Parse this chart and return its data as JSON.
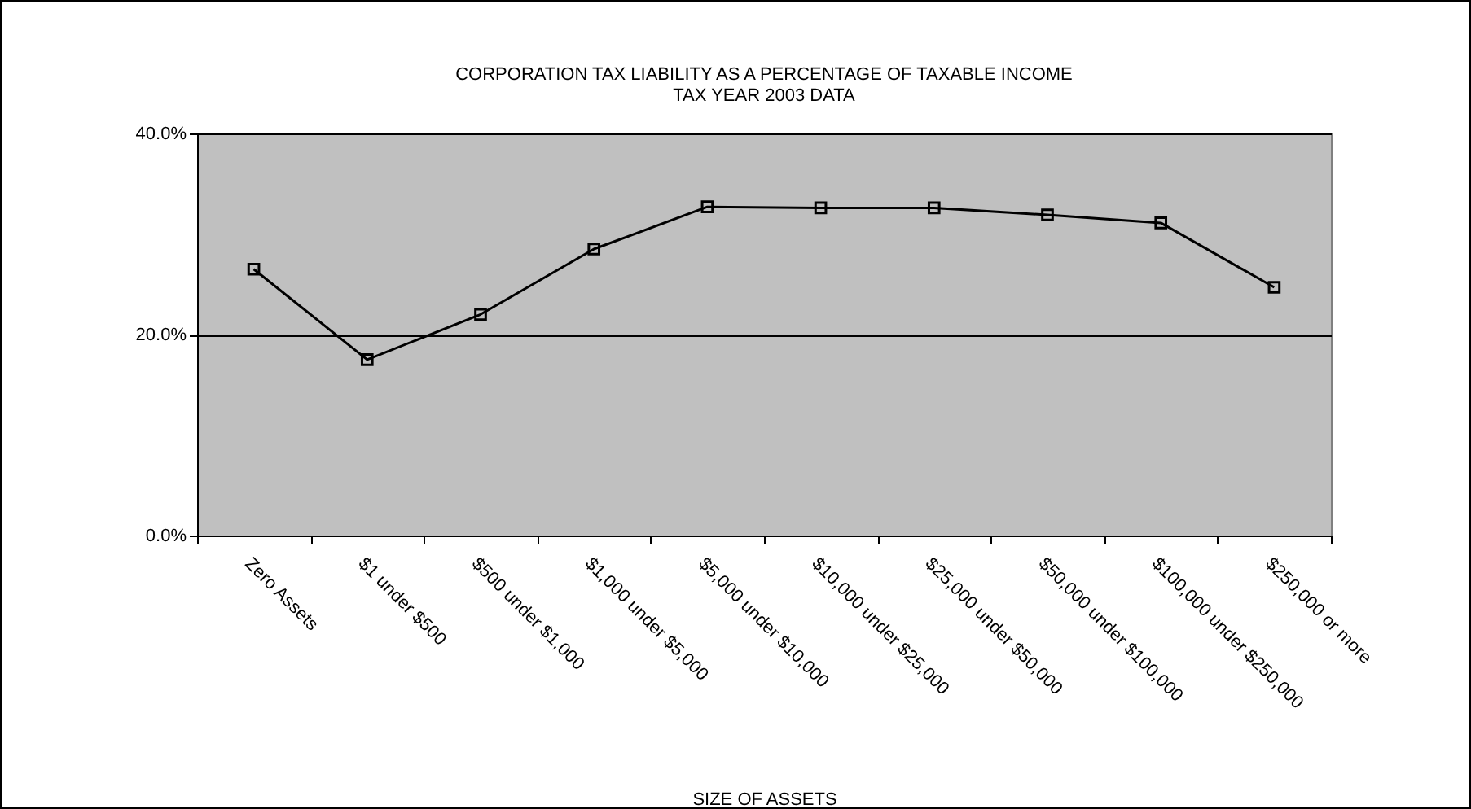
{
  "chart_data": {
    "type": "line",
    "title": "CORPORATION TAX LIABILITY AS A PERCENTAGE OF TAXABLE INCOME",
    "subtitle": "TAX YEAR 2003 DATA",
    "xlabel": "SIZE OF ASSETS",
    "categories": [
      "Zero Assets",
      "$1 under $500",
      "$500 under $1,000",
      "$1,000 under $5,000",
      "$5,000 under $10,000",
      "$10,000 under $25,000",
      "$25,000 under $50,000",
      "$50,000 under $100,000",
      "$100,000 under $250,000",
      "$250,000 or more"
    ],
    "series": [
      {
        "color": "#000000",
        "values": [
          26.5,
          17.5,
          22.0,
          28.5,
          32.7,
          32.6,
          32.6,
          31.9,
          31.1,
          24.7
        ]
      }
    ],
    "ylim": [
      0,
      40
    ],
    "yticks": [
      {
        "value": 0,
        "label": "0.0%"
      },
      {
        "value": 20,
        "label": "20.0%"
      },
      {
        "value": 40,
        "label": "40.0%"
      }
    ],
    "grid": "y",
    "marker": "square",
    "line_style": "solid"
  }
}
